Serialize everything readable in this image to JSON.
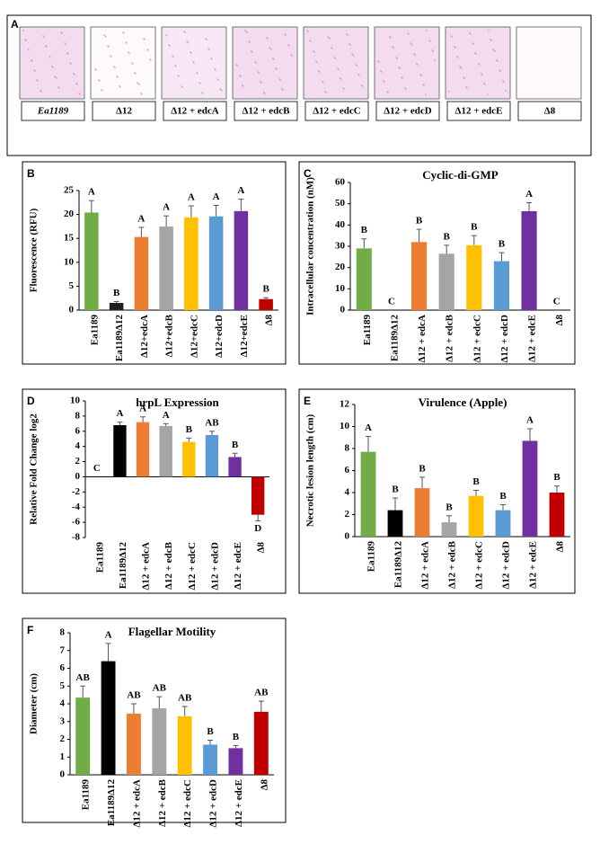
{
  "panel_a": {
    "panel": "A",
    "labels": [
      "Ea1189",
      "Δ12",
      "Δ12 + edcA",
      "Δ12 + edcB",
      "Δ12 + edcC",
      "Δ12 + edcD",
      "Δ12 + edcE",
      "Δ8"
    ]
  },
  "chart_data": [
    {
      "type": "bar",
      "panel": "B",
      "ylabel": "Fluorescence (RFU)",
      "categories": [
        "Ea1189",
        "Ea1189Δ12",
        "Δ12+edcA",
        "Δ12+edcB",
        "Δ12+edcC",
        "Δ12+edcD",
        "Δ12+edcE",
        "Δ8"
      ],
      "values": [
        20.4,
        1.5,
        15.3,
        17.5,
        19.4,
        19.6,
        20.7,
        2.3
      ],
      "errors": [
        2.5,
        0.3,
        2.0,
        2.2,
        2.4,
        2.3,
        2.5,
        0.3
      ],
      "annotations": [
        "A",
        "B",
        "A",
        "A",
        "A",
        "A",
        "A",
        "B"
      ],
      "colors": [
        "#70ad47",
        "#1f1f1f",
        "#ed7d31",
        "#a5a5a5",
        "#ffc000",
        "#5b9bd5",
        "#7030a0",
        "#c00000"
      ],
      "ylim": [
        0,
        25
      ],
      "yticks": [
        0,
        5,
        10,
        15,
        20,
        25
      ]
    },
    {
      "type": "bar",
      "panel": "C",
      "title": "Cyclic-di-GMP",
      "ylabel": "Intracellular concentration (nM)",
      "categories": [
        "Ea1189",
        "Ea1189Δ12",
        "Δ12 + edcA",
        "Δ12 + edcB",
        "Δ12 + edcC",
        "Δ12 + edcD",
        "Δ12 + edcE",
        "Δ8"
      ],
      "values": [
        29,
        0,
        32,
        26.5,
        30.5,
        23,
        46.5,
        0
      ],
      "errors": [
        4.5,
        null,
        6,
        4,
        4.5,
        4,
        4,
        null
      ],
      "annotations": [
        "B",
        "C",
        "B",
        "B",
        "B",
        "B",
        "A",
        "C"
      ],
      "colors": [
        "#70ad47",
        "#1f1f1f",
        "#ed7d31",
        "#a5a5a5",
        "#ffc000",
        "#5b9bd5",
        "#7030a0",
        "#c00000"
      ],
      "ylim": [
        0,
        60
      ],
      "yticks": [
        0,
        10,
        20,
        30,
        40,
        50,
        60
      ]
    },
    {
      "type": "bar",
      "panel": "D",
      "title": "hrpL Expression",
      "ylabel": "Relative Fold Change log2",
      "categories": [
        "Ea1189",
        "Ea1189Δ12",
        "Δ12 + edcA",
        "Δ12 + edcB",
        "Δ12 + edcC",
        "Δ12 + edcD",
        "Δ12 + edcE",
        "Δ8"
      ],
      "values": [
        0,
        6.8,
        7.2,
        6.7,
        4.6,
        5.5,
        2.6,
        -5
      ],
      "errors": [
        null,
        0.4,
        0.7,
        0.3,
        0.5,
        0.5,
        0.5,
        0.8
      ],
      "annotations": [
        "C",
        "A",
        "A",
        "A",
        "B",
        "AB",
        "B",
        "D"
      ],
      "colors": [
        "#70ad47",
        "#000000",
        "#ed7d31",
        "#a5a5a5",
        "#ffc000",
        "#5b9bd5",
        "#7030a0",
        "#c00000"
      ],
      "ylim": [
        -8,
        10
      ],
      "yticks": [
        -8,
        -6,
        -4,
        -2,
        0,
        2,
        4,
        6,
        8,
        10
      ]
    },
    {
      "type": "bar",
      "panel": "E",
      "title": "Virulence (Apple)",
      "ylabel": "Necrotic lesion length (cm)",
      "categories": [
        "Ea1189",
        "Ea1189Δ12",
        "Δ12 + edcA",
        "Δ12 + edcB",
        "Δ12 + edcC",
        "Δ12 + edcD",
        "Δ12 + edcE",
        "Δ8"
      ],
      "values": [
        7.7,
        2.4,
        4.4,
        1.3,
        3.7,
        2.4,
        8.7,
        4.0
      ],
      "errors": [
        1.4,
        1.1,
        1.0,
        0.6,
        0.5,
        0.5,
        1.1,
        0.6
      ],
      "annotations": [
        "A",
        "B",
        "B",
        "B",
        "B",
        "B",
        "A",
        "B"
      ],
      "colors": [
        "#70ad47",
        "#000000",
        "#ed7d31",
        "#a5a5a5",
        "#ffc000",
        "#5b9bd5",
        "#7030a0",
        "#c00000"
      ],
      "ylim": [
        0,
        12
      ],
      "yticks": [
        0,
        2,
        4,
        6,
        8,
        10,
        12
      ]
    },
    {
      "type": "bar",
      "panel": "F",
      "title": "Flagellar Motility",
      "ylabel": "Diameter (cm)",
      "categories": [
        "Ea1189",
        "Ea1189Δ12",
        "Δ12 + edcA",
        "Δ12 + edcB",
        "Δ12 + edcC",
        "Δ12 + edcD",
        "Δ12 + edcE",
        "Δ8"
      ],
      "values": [
        4.35,
        6.4,
        3.45,
        3.75,
        3.3,
        1.7,
        1.5,
        3.55
      ],
      "errors": [
        0.65,
        1.0,
        0.55,
        0.65,
        0.55,
        0.25,
        0.15,
        0.6
      ],
      "annotations": [
        "AB",
        "A",
        "AB",
        "AB",
        "AB",
        "B",
        "B",
        "AB"
      ],
      "colors": [
        "#70ad47",
        "#000000",
        "#ed7d31",
        "#a5a5a5",
        "#ffc000",
        "#5b9bd5",
        "#7030a0",
        "#c00000"
      ],
      "ylim": [
        0,
        8
      ],
      "yticks": [
        0,
        1,
        2,
        3,
        4,
        5,
        6,
        7,
        8
      ]
    }
  ]
}
